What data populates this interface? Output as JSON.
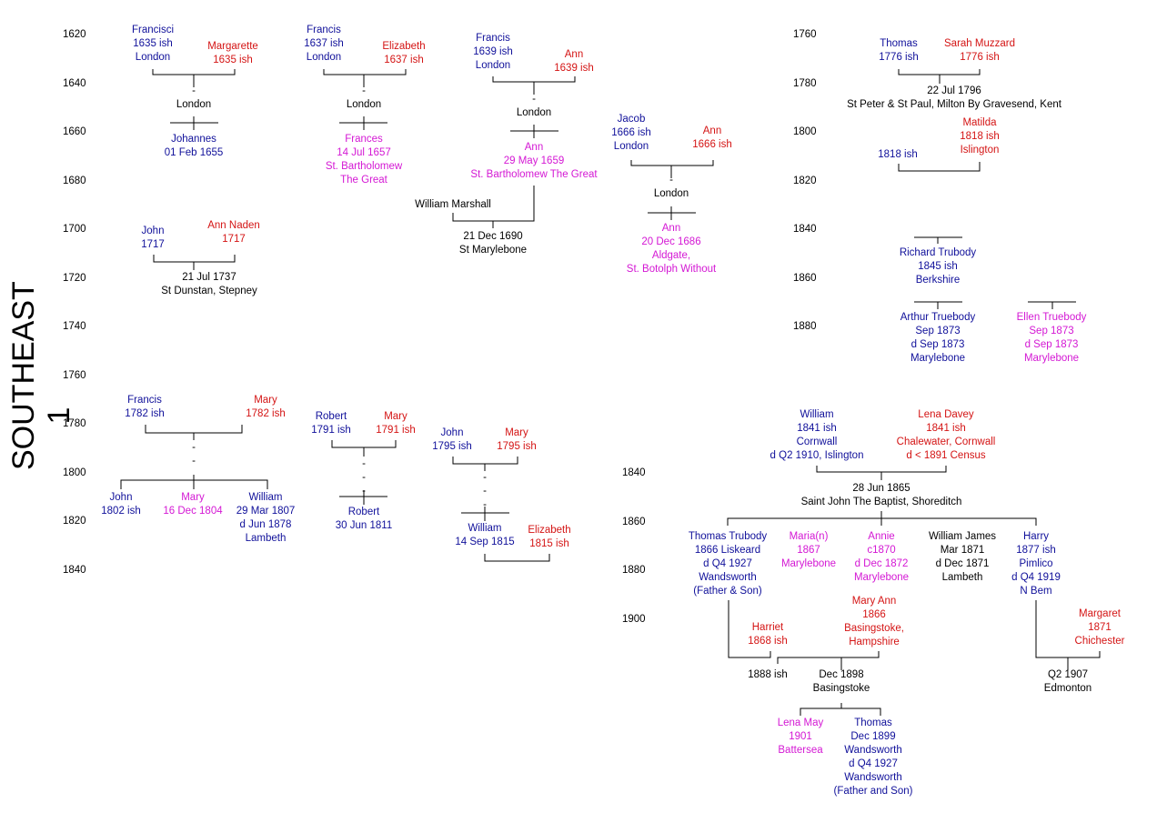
{
  "title": "SOUTHEAST 1",
  "axes": {
    "left_top": [
      "1620",
      "1640",
      "1660",
      "1680",
      "1700",
      "1720",
      "1740",
      "1760"
    ],
    "left_bottom": [
      "1780",
      "1800",
      "1820",
      "1840"
    ],
    "right_top": [
      "1760",
      "1780",
      "1800",
      "1820",
      "1840",
      "1860",
      "1880"
    ],
    "right_bottom": [
      "1840",
      "1860",
      "1880",
      "1900"
    ]
  },
  "labels": {
    "fr1635": "Francisci\n1635 ish\nLondon",
    "mg1635": "Margarette\n1635 ish",
    "ldn1": "-\nLondon",
    "johannes": "Johannes\n01 Feb 1655",
    "fr1637": "Francis\n1637 ish\nLondon",
    "el1637": "Elizabeth\n1637 ish",
    "ldn2": "-\nLondon",
    "frances": "Frances\n14 Jul 1657\nSt. Bartholomew\nThe Great",
    "fr1639": "Francis\n1639 ish\nLondon",
    "an1639": "Ann\n1639 ish",
    "ldn3": "-\nLondon",
    "ann1659": "Ann\n29 May 1659\nSt. Bartholomew The Great",
    "wmarshall": "William Marshall",
    "mar1690": "21 Dec 1690\nSt Marylebone",
    "jacob": "Jacob\n1666 ish\nLondon",
    "an1666": "Ann\n1666 ish",
    "ldn4": "-\nLondon",
    "ann1686": "Ann\n20 Dec 1686\nAldgate,\nSt. Botolph Without",
    "john1717": "John\n1717",
    "annnaden": "Ann Naden\n1717",
    "mar1737": "21 Jul 1737\nSt Dunstan, Stepney",
    "thomas1776": "Thomas\n1776 ish",
    "sarah": "Sarah Muzzard\n1776 ish",
    "mar1796": "22 Jul 1796\nSt Peter & St Paul, Milton By Gravesend, Kent",
    "matilda": "Matilda\n1818 ish\nIslington",
    "m1818": "1818 ish",
    "richard": "Richard Trubody\n1845 ish\nBerkshire",
    "arthur": "Arthur Truebody\nSep 1873\nd Sep 1873\nMarylebone",
    "ellen": "Ellen Truebody\nSep 1873\nd Sep 1873\nMarylebone",
    "fr1782": "Francis\n1782 ish",
    "mary1782": "Mary\n1782 ish",
    "dash1": "-\n-",
    "john1802": "John\n1802 ish",
    "mary1804": "Mary\n16 Dec 1804",
    "william1807": "William\n29 Mar 1807\nd Jun 1878\nLambeth",
    "robert1791": "Robert\n1791 ish",
    "mary1791": "Mary\n1791 ish",
    "dash2": "-\n-\n-",
    "robert1811": "Robert\n30 Jun 1811",
    "john1795": "John\n1795 ish",
    "mary1795": "Mary\n1795 ish",
    "dash3": "-\n-\n-",
    "william1815": "William\n14 Sep 1815",
    "elizabeth1815": "Elizabeth\n1815 ish",
    "william1841": "William\n1841 ish\nCornwall\nd Q2 1910, Islington",
    "lena1841": "Lena Davey\n1841 ish\nChalewater, Cornwall\nd < 1891 Census",
    "mar1865": "28 Jun 1865\nSaint John The Baptist, Shoreditch",
    "thomas1866": "Thomas Trubody\n1866 Liskeard\nd Q4 1927\nWandsworth\n(Father & Son)",
    "maria1867": "Maria(n)\n1867\nMarylebone",
    "annie1870": "Annie\nc1870\nd Dec 1872\nMarylebone",
    "wj1871": "William James\nMar 1871\nd Dec 1871\nLambeth",
    "harry1877": "Harry\n1877 ish\nPimlico\nd Q4 1919\nN Bem",
    "maryann1866": "Mary Ann\n1866\nBasingstoke,\nHampshire",
    "harriet1868": "Harriet\n1868 ish",
    "margaret1871": "Margaret\n1871\nChichester",
    "m1888": "1888 ish",
    "m1898": "Dec 1898\nBasingstoke",
    "m1907": "Q2 1907\nEdmonton",
    "lena1901": "Lena May\n1901\nBattersea",
    "thomas1899": "Thomas\nDec 1899\nWandsworth\nd Q4 1927\nWandsworth\n(Father and Son)"
  }
}
